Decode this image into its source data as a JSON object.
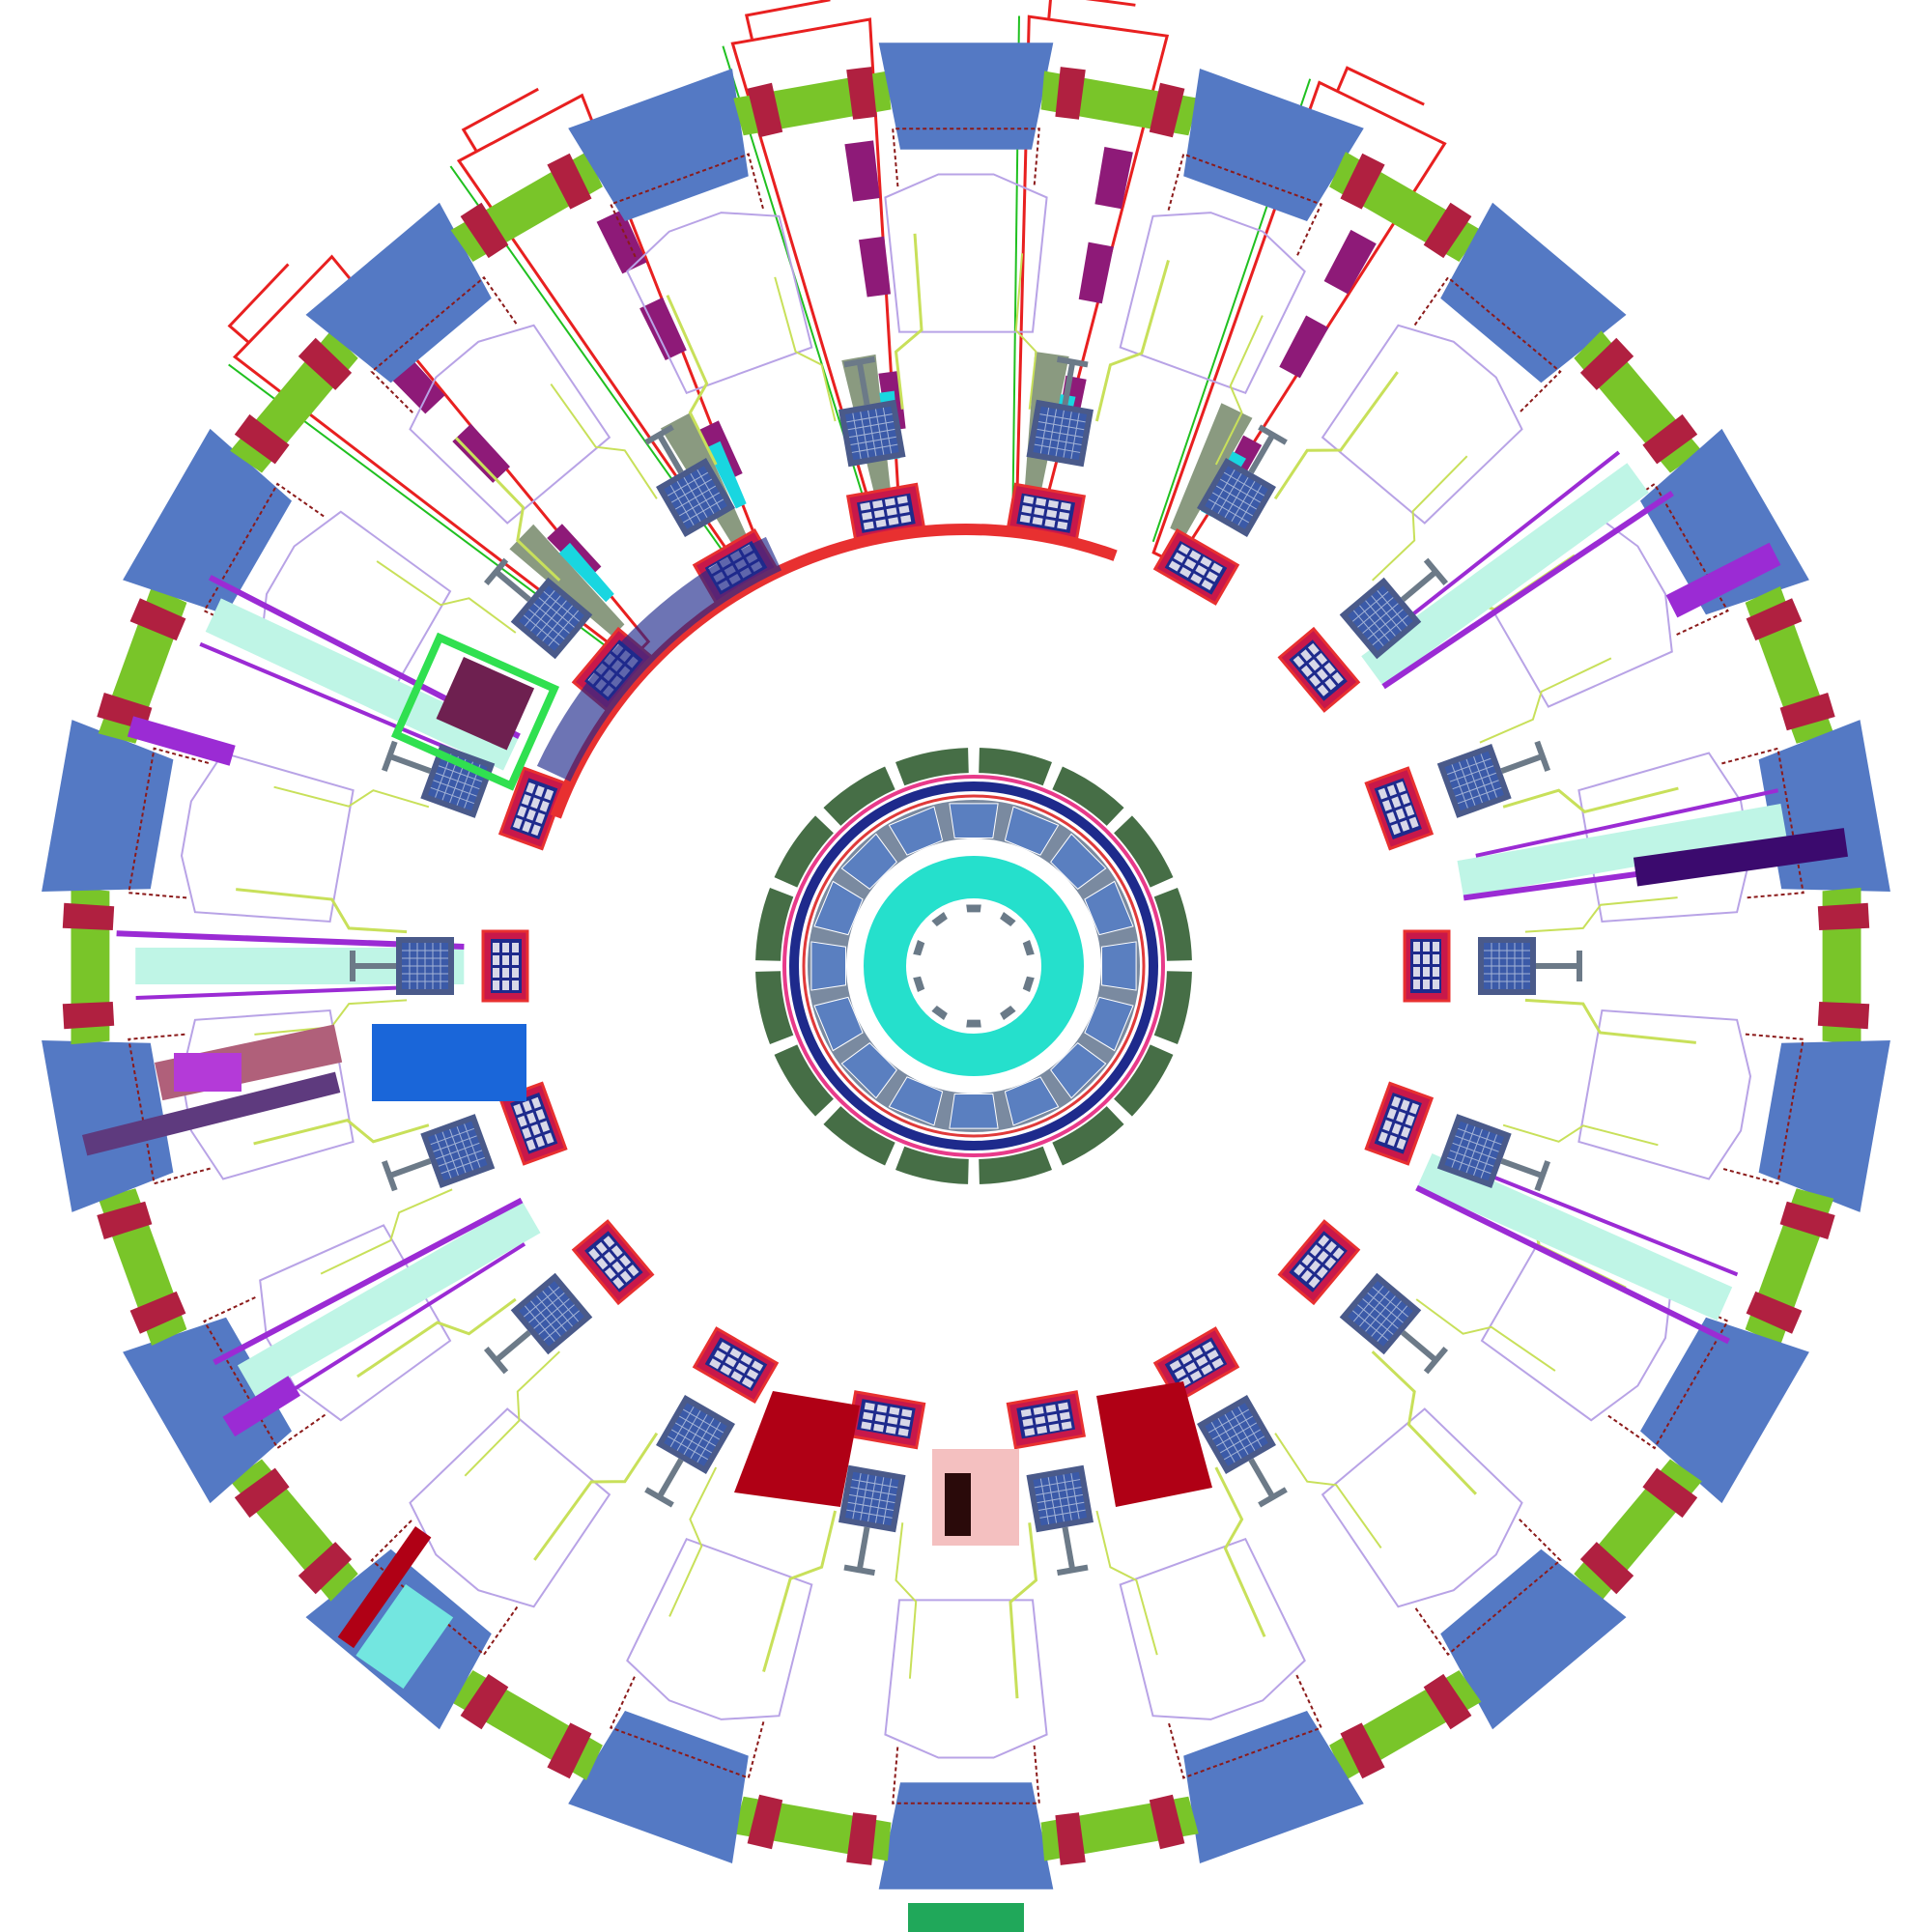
{
  "diagram": {
    "kind": "radial-cross-section",
    "sector_count": 18,
    "ring_segment_count": 16,
    "inner_tile_count": 16,
    "hub_slot_count": 10,
    "colors": {
      "background": "#ffffff",
      "outer_block": "#5479c4",
      "outer_connector": "#79c529",
      "connector_cap": "#b02040",
      "wiring_lavender": "#b8a3e6",
      "wiring_lime": "#c8e05a",
      "wiring_red": "#8b1a1a",
      "module_frame": "#4a5a8a",
      "module_fill": "#3b5aa8",
      "module_grid": "#a3b3d6",
      "module_stem": "#6c7a88",
      "inner_body": "#c8184a",
      "inner_frame": "#1e2a8c",
      "inner_dot": "#d8d8e8",
      "inner_outline": "#e83030",
      "channel_mint": "#bff5e6",
      "channel_purple": "#9b2bd4",
      "channel_dark": "#3b0a6e",
      "wedge_magenta": "#8e1a78",
      "wedge_red": "#e82020",
      "wedge_green": "#20c020",
      "wedge_olive": "#8a9a80",
      "wedge_cyan": "#19d6e0",
      "hub_green": "#466e46",
      "hub_navy": "#1e2a8c",
      "hub_tile": "#5a7fc0",
      "hub_gray": "#7a8aa0",
      "hub_teal": "#25e0cc",
      "hub_slot": "#6a7a88",
      "lower_red_block": "#b00015",
      "lower_green": "#20a85a",
      "lower_bright_green": "#30e050",
      "lower_maroon": "#6e2050",
      "lower_blue": "#1a66d9",
      "lower_mauve": "#b0607a",
      "lower_purple": "#5e3a7e"
    }
  }
}
